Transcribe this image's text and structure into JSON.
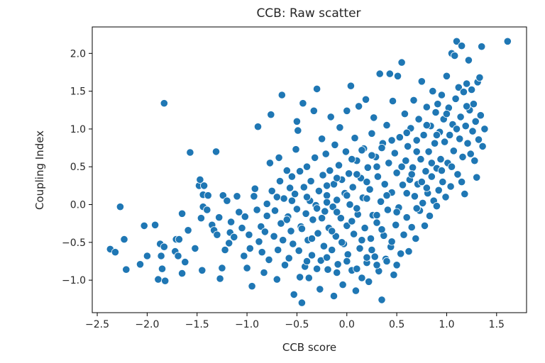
{
  "chart_data": {
    "type": "scatter",
    "title": "CCB: Raw scatter",
    "xlabel": "CCB score",
    "ylabel": "Coupling Index",
    "xlim": [
      -2.55,
      1.8
    ],
    "ylim": [
      -1.43,
      2.35
    ],
    "xticks": [
      -2.5,
      -2.0,
      -1.5,
      -1.0,
      -0.5,
      0.0,
      0.5,
      1.0,
      1.5
    ],
    "xtick_labels": [
      "−2.5",
      "−2.0",
      "−1.5",
      "−1.0",
      "−0.5",
      "0.0",
      "0.5",
      "1.0",
      "1.5"
    ],
    "yticks": [
      -1.0,
      -0.5,
      0.0,
      0.5,
      1.0,
      1.5,
      2.0
    ],
    "ytick_labels": [
      "−1.0",
      "−0.5",
      "0.0",
      "0.5",
      "1.0",
      "1.5",
      "2.0"
    ],
    "grid": false,
    "legend": "none",
    "marker_color": "#1f77b4",
    "marker_edge_color": "#ffffff",
    "points": [
      [
        -2.37,
        -0.59
      ],
      [
        -2.32,
        -0.63
      ],
      [
        -2.27,
        -0.03
      ],
      [
        -2.23,
        -0.46
      ],
      [
        -2.21,
        -0.86
      ],
      [
        -2.07,
        -0.79
      ],
      [
        -2.03,
        -0.28
      ],
      [
        -2.0,
        -0.68
      ],
      [
        -1.92,
        -0.27
      ],
      [
        -1.89,
        -0.99
      ],
      [
        -1.87,
        -0.52
      ],
      [
        -1.86,
        -0.68
      ],
      [
        -1.85,
        -0.85
      ],
      [
        -1.83,
        -0.56
      ],
      [
        -1.83,
        1.34
      ],
      [
        -1.82,
        -1.01
      ],
      [
        -1.72,
        -0.62
      ],
      [
        -1.71,
        -0.46
      ],
      [
        -1.68,
        -0.46
      ],
      [
        -1.69,
        -0.68
      ],
      [
        -1.65,
        -0.91
      ],
      [
        -1.65,
        -0.12
      ],
      [
        -1.62,
        -0.76
      ],
      [
        -1.59,
        -0.34
      ],
      [
        -1.57,
        0.69
      ],
      [
        -1.52,
        -0.58
      ],
      [
        -1.48,
        0.25
      ],
      [
        -1.47,
        0.33
      ],
      [
        -1.46,
        -0.18
      ],
      [
        -1.45,
        -0.87
      ],
      [
        -1.44,
        0.13
      ],
      [
        -1.44,
        -0.03
      ],
      [
        -1.43,
        0.25
      ],
      [
        -1.4,
        -0.07
      ],
      [
        -1.39,
        0.12
      ],
      [
        -1.35,
        -0.27
      ],
      [
        -1.33,
        -0.34
      ],
      [
        -1.31,
        0.7
      ],
      [
        -1.3,
        -0.4
      ],
      [
        -1.28,
        -0.17
      ],
      [
        -1.27,
        -0.98
      ],
      [
        -1.25,
        -0.84
      ],
      [
        -1.24,
        0.12
      ],
      [
        -1.22,
        -0.6
      ],
      [
        -1.2,
        0.05
      ],
      [
        -1.18,
        -0.51
      ],
      [
        -1.17,
        -0.37
      ],
      [
        -1.16,
        -0.23
      ],
      [
        -1.13,
        -0.43
      ],
      [
        -1.1,
        0.11
      ],
      [
        -1.08,
        -0.1
      ],
      [
        -1.05,
        -0.31
      ],
      [
        -1.03,
        -0.68
      ],
      [
        -1.02,
        -0.16
      ],
      [
        -1.0,
        -0.84
      ],
      [
        -0.98,
        -0.4
      ],
      [
        -0.97,
        -0.58
      ],
      [
        -0.95,
        -1.08
      ],
      [
        -0.93,
        0.11
      ],
      [
        -0.92,
        0.21
      ],
      [
        -0.9,
        -0.07
      ],
      [
        -0.89,
        1.03
      ],
      [
        -0.88,
        -0.49
      ],
      [
        -0.86,
        -0.29
      ],
      [
        -0.85,
        -0.63
      ],
      [
        -0.83,
        -0.9
      ],
      [
        -0.82,
        -0.36
      ],
      [
        -0.8,
        0.01
      ],
      [
        -0.78,
        -0.73
      ],
      [
        -0.77,
        0.55
      ],
      [
        -0.76,
        1.19
      ],
      [
        -0.75,
        0.18
      ],
      [
        -0.73,
        -0.42
      ],
      [
        -0.72,
        -0.08
      ],
      [
        -0.7,
        -0.99
      ],
      [
        -0.69,
        -0.6
      ],
      [
        -0.68,
        0.62
      ],
      [
        -0.67,
        0.31
      ],
      [
        -0.66,
        -0.25
      ],
      [
        -0.65,
        1.45
      ],
      [
        -0.64,
        -0.47
      ],
      [
        -0.63,
        0.08
      ],
      [
        -0.62,
        -0.8
      ],
      [
        -0.6,
        0.45
      ],
      [
        -0.59,
        -0.16
      ],
      [
        -0.58,
        -0.71
      ],
      [
        -0.57,
        0.22
      ],
      [
        -0.56,
        -0.35
      ],
      [
        -0.55,
        0.37
      ],
      [
        -0.54,
        -0.52
      ],
      [
        -0.53,
        -1.19
      ],
      [
        -0.52,
        0.14
      ],
      [
        -0.51,
        0.73
      ],
      [
        -0.5,
        -0.06
      ],
      [
        -0.5,
        1.1
      ],
      [
        -0.49,
        0.98
      ],
      [
        -0.48,
        -0.61
      ],
      [
        -0.47,
        0.44
      ],
      [
        -0.47,
        -0.96
      ],
      [
        -0.46,
        -0.29
      ],
      [
        -0.45,
        -1.3
      ],
      [
        -0.44,
        1.34
      ],
      [
        -0.43,
        0.23
      ],
      [
        -0.42,
        -0.82
      ],
      [
        -0.41,
        -0.12
      ],
      [
        -0.4,
        0.5
      ],
      [
        -0.39,
        -0.47
      ],
      [
        -0.38,
        -0.97
      ],
      [
        -0.37,
        0.05
      ],
      [
        -0.36,
        0.31
      ],
      [
        -0.35,
        -0.67
      ],
      [
        -0.34,
        -0.2
      ],
      [
        -0.33,
        1.24
      ],
      [
        -0.32,
        0.62
      ],
      [
        -0.31,
        -0.01
      ],
      [
        -0.3,
        1.53
      ],
      [
        -0.29,
        -0.38
      ],
      [
        -0.28,
        0.18
      ],
      [
        -0.27,
        -1.12
      ],
      [
        -0.26,
        -0.74
      ],
      [
        -0.25,
        0.87
      ],
      [
        -0.24,
        0.39
      ],
      [
        -0.23,
        -0.55
      ],
      [
        -0.22,
        -0.09
      ],
      [
        -0.21,
        0.67
      ],
      [
        -0.2,
        0.12
      ],
      [
        -0.19,
        -0.86
      ],
      [
        -0.18,
        -0.31
      ],
      [
        -0.17,
        0.45
      ],
      [
        -0.16,
        1.16
      ],
      [
        -0.15,
        -0.6
      ],
      [
        -0.14,
        -0.03
      ],
      [
        -0.13,
        0.27
      ],
      [
        -0.13,
        -1.21
      ],
      [
        -0.12,
        0.79
      ],
      [
        -0.11,
        -0.42
      ],
      [
        -0.1,
        0.06
      ],
      [
        -0.09,
        -0.79
      ],
      [
        -0.08,
        0.52
      ],
      [
        -0.07,
        1.02
      ],
      [
        -0.06,
        -0.18
      ],
      [
        -0.05,
        0.33
      ],
      [
        -0.04,
        -1.06
      ],
      [
        -0.03,
        -0.52
      ],
      [
        -0.02,
        0.15
      ],
      [
        -0.01,
        0.7
      ],
      [
        0.0,
        -0.28
      ],
      [
        0.0,
        1.24
      ],
      [
        0.01,
        -0.66
      ],
      [
        0.02,
        0.41
      ],
      [
        0.03,
        0.0
      ],
      [
        0.04,
        1.57
      ],
      [
        0.05,
        -0.87
      ],
      [
        0.06,
        0.23
      ],
      [
        0.07,
        -0.39
      ],
      [
        0.08,
        0.88
      ],
      [
        0.09,
        -1.14
      ],
      [
        0.1,
        0.58
      ],
      [
        0.11,
        -0.13
      ],
      [
        0.12,
        1.3
      ],
      [
        0.13,
        -0.58
      ],
      [
        0.14,
        0.35
      ],
      [
        0.15,
        -0.97
      ],
      [
        0.16,
        0.09
      ],
      [
        0.17,
        0.74
      ],
      [
        0.18,
        -0.31
      ],
      [
        0.19,
        1.39
      ],
      [
        0.2,
        -0.77
      ],
      [
        0.21,
        0.49
      ],
      [
        0.22,
        -1.02
      ],
      [
        0.23,
        0.2
      ],
      [
        0.24,
        -0.45
      ],
      [
        0.25,
        0.94
      ],
      [
        0.26,
        -0.14
      ],
      [
        0.27,
        1.15
      ],
      [
        0.28,
        -0.69
      ],
      [
        0.29,
        0.63
      ],
      [
        0.3,
        -0.24
      ],
      [
        0.31,
        0.37
      ],
      [
        0.32,
        -0.88
      ],
      [
        0.33,
        1.73
      ],
      [
        0.34,
        0.04
      ],
      [
        0.35,
        -1.26
      ],
      [
        0.36,
        0.81
      ],
      [
        0.37,
        -0.41
      ],
      [
        0.38,
        0.27
      ],
      [
        0.39,
        -0.72
      ],
      [
        0.4,
        1.05
      ],
      [
        0.41,
        -0.07
      ],
      [
        0.42,
        0.55
      ],
      [
        0.43,
        1.73
      ],
      [
        0.44,
        -0.56
      ],
      [
        0.45,
        0.16
      ],
      [
        0.46,
        1.37
      ],
      [
        0.47,
        -0.93
      ],
      [
        0.48,
        0.68
      ],
      [
        0.49,
        -0.27
      ],
      [
        0.5,
        0.42
      ],
      [
        0.51,
        1.7
      ],
      [
        0.52,
        -0.04
      ],
      [
        0.53,
        0.89
      ],
      [
        0.54,
        -0.65
      ],
      [
        0.55,
        1.88
      ],
      [
        0.56,
        0.26
      ],
      [
        0.57,
        -0.4
      ],
      [
        0.58,
        1.2
      ],
      [
        0.59,
        0.58
      ],
      [
        0.6,
        -0.17
      ],
      [
        0.61,
        0.77
      ],
      [
        0.62,
        -0.62
      ],
      [
        0.63,
        0.33
      ],
      [
        0.64,
        1.01
      ],
      [
        0.65,
        -0.3
      ],
      [
        0.66,
        0.49
      ],
      [
        0.67,
        1.38
      ],
      [
        0.68,
        0.11
      ],
      [
        0.69,
        -0.45
      ],
      [
        0.7,
        0.85
      ],
      [
        0.71,
        0.27
      ],
      [
        0.72,
        1.13
      ],
      [
        0.73,
        -0.08
      ],
      [
        0.74,
        0.6
      ],
      [
        0.75,
        1.63
      ],
      [
        0.76,
        0.02
      ],
      [
        0.77,
        0.92
      ],
      [
        0.78,
        -0.28
      ],
      [
        0.79,
        0.44
      ],
      [
        0.8,
        1.29
      ],
      [
        0.81,
        0.15
      ],
      [
        0.82,
        0.7
      ],
      [
        0.83,
        -0.15
      ],
      [
        0.84,
        1.04
      ],
      [
        0.85,
        0.37
      ],
      [
        0.86,
        1.5
      ],
      [
        0.87,
        0.05
      ],
      [
        0.88,
        0.81
      ],
      [
        0.89,
        1.22
      ],
      [
        0.9,
        0.48
      ],
      [
        0.91,
        1.33
      ],
      [
        0.92,
        0.19
      ],
      [
        0.93,
        0.96
      ],
      [
        0.94,
        0.6
      ],
      [
        0.95,
        1.45
      ],
      [
        0.96,
        0.3
      ],
      [
        0.97,
        1.13
      ],
      [
        0.98,
        0.83
      ],
      [
        0.99,
        0.1
      ],
      [
        1.0,
        1.7
      ],
      [
        1.01,
        0.55
      ],
      [
        1.02,
        1.28
      ],
      [
        1.03,
        0.92
      ],
      [
        1.04,
        0.24
      ],
      [
        1.05,
        2.0
      ],
      [
        1.06,
        1.06
      ],
      [
        1.07,
        0.71
      ],
      [
        1.08,
        1.97
      ],
      [
        1.09,
        1.4
      ],
      [
        1.1,
        2.16
      ],
      [
        1.11,
        0.4
      ],
      [
        1.12,
        1.55
      ],
      [
        1.13,
        0.87
      ],
      [
        1.14,
        1.16
      ],
      [
        1.15,
        2.1
      ],
      [
        1.16,
        0.63
      ],
      [
        1.17,
        1.49
      ],
      [
        1.18,
        0.14
      ],
      [
        1.19,
        1.04
      ],
      [
        1.2,
        1.6
      ],
      [
        1.21,
        0.81
      ],
      [
        1.22,
        1.91
      ],
      [
        1.23,
        1.25
      ],
      [
        1.24,
        0.67
      ],
      [
        1.25,
        1.52
      ],
      [
        1.26,
        0.97
      ],
      [
        1.27,
        1.33
      ],
      [
        1.28,
        0.58
      ],
      [
        1.29,
        1.1
      ],
      [
        1.3,
        0.36
      ],
      [
        1.31,
        1.62
      ],
      [
        1.32,
        0.86
      ],
      [
        1.33,
        1.68
      ],
      [
        1.34,
        1.18
      ],
      [
        1.35,
        2.09
      ],
      [
        1.36,
        0.77
      ],
      [
        1.38,
        1.0
      ],
      [
        1.61,
        2.16
      ],
      [
        -0.45,
        -0.32
      ],
      [
        -0.35,
        -0.45
      ],
      [
        -0.25,
        -0.18
      ],
      [
        -0.15,
        -0.35
      ],
      [
        -0.05,
        -0.5
      ],
      [
        0.05,
        -0.22
      ],
      [
        0.15,
        -0.47
      ],
      [
        0.25,
        -0.6
      ],
      [
        0.35,
        -0.33
      ],
      [
        0.45,
        -0.49
      ],
      [
        -0.4,
        0.1
      ],
      [
        -0.3,
        -0.05
      ],
      [
        -0.2,
        0.03
      ],
      [
        -0.1,
        -0.1
      ],
      [
        0.0,
        0.12
      ],
      [
        0.1,
        -0.05
      ],
      [
        0.2,
        0.08
      ],
      [
        0.3,
        -0.14
      ],
      [
        0.4,
        0.12
      ],
      [
        0.5,
        -0.1
      ],
      [
        -0.55,
        0.05
      ],
      [
        -0.6,
        -0.2
      ],
      [
        -0.7,
        0.1
      ],
      [
        -0.8,
        -0.15
      ],
      [
        0.6,
        0.15
      ],
      [
        0.7,
        -0.05
      ],
      [
        0.8,
        0.22
      ],
      [
        0.9,
        -0.02
      ],
      [
        0.55,
        0.5
      ],
      [
        0.65,
        0.4
      ],
      [
        0.75,
        0.3
      ],
      [
        0.85,
        0.55
      ],
      [
        0.95,
        0.45
      ],
      [
        1.05,
        0.5
      ],
      [
        1.15,
        0.3
      ],
      [
        0.1,
        0.4
      ],
      [
        0.2,
        0.3
      ],
      [
        0.3,
        0.5
      ],
      [
        -0.1,
        0.35
      ],
      [
        -0.2,
        0.25
      ],
      [
        0.05,
        0.6
      ],
      [
        0.15,
        0.72
      ],
      [
        0.25,
        0.65
      ],
      [
        0.35,
        0.75
      ],
      [
        0.45,
        0.85
      ],
      [
        0.6,
        0.95
      ],
      [
        0.7,
        0.7
      ],
      [
        0.8,
        1.05
      ],
      [
        0.9,
        0.92
      ],
      [
        1.0,
        1.2
      ],
      [
        1.1,
        1.0
      ],
      [
        1.2,
        1.3
      ],
      [
        0.0,
        -0.75
      ],
      [
        0.1,
        -0.85
      ],
      [
        0.2,
        -0.7
      ],
      [
        0.3,
        -0.8
      ],
      [
        -0.1,
        -0.9
      ],
      [
        -0.2,
        -0.7
      ],
      [
        0.4,
        -0.75
      ],
      [
        0.5,
        -0.8
      ],
      [
        -0.3,
        -0.85
      ],
      [
        -0.4,
        -0.75
      ]
    ]
  }
}
